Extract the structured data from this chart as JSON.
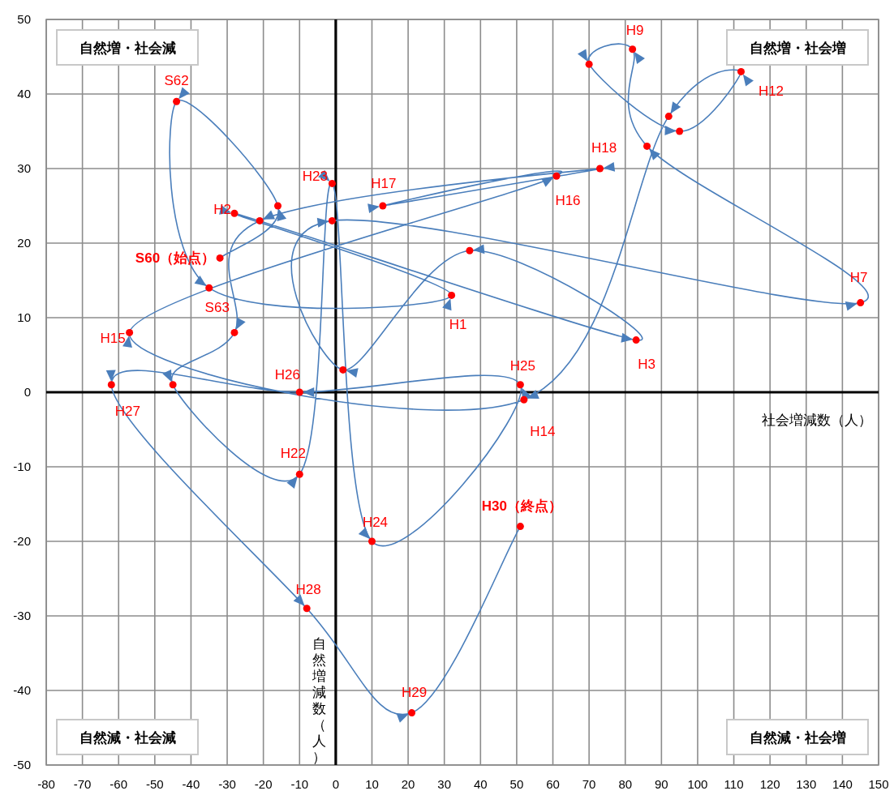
{
  "chart_data": {
    "type": "line",
    "xlabel": "社会増減数（人）",
    "ylabel": "自然増減数（人）",
    "x": [
      -32,
      -16,
      -44,
      -35,
      32,
      -28,
      83,
      37,
      2,
      -1,
      145,
      86,
      82,
      70,
      95,
      112,
      92,
      52,
      -57,
      61,
      13,
      73,
      -21,
      -28,
      -45,
      -10,
      -1,
      10,
      51,
      -10,
      -62,
      -8,
      21,
      51
    ],
    "series": [
      {
        "color": "#4a7ebb",
        "values": [
          18,
          25,
          39,
          14,
          13,
          24,
          7,
          19,
          3,
          23,
          12,
          33,
          46,
          44,
          35,
          43,
          37,
          -1,
          8,
          29,
          25,
          30,
          23,
          8,
          1,
          -11,
          28,
          -20,
          1,
          0,
          1,
          -29,
          -43,
          -18
        ]
      }
    ],
    "xlim": [
      -80,
      150
    ],
    "ylim": [
      -50,
      50
    ],
    "xticks": [
      -80,
      -70,
      -60,
      -50,
      -40,
      -30,
      -20,
      -10,
      0,
      10,
      20,
      30,
      40,
      50,
      60,
      70,
      80,
      90,
      100,
      110,
      120,
      130,
      140,
      150
    ],
    "yticks": [
      -50,
      -40,
      -30,
      -20,
      -10,
      0,
      10,
      20,
      30,
      40,
      50
    ],
    "grid": true,
    "marker": "circle",
    "annotations": [
      "自然増・社会減",
      "自然増・社会増",
      "自然減・社会減",
      "自然減・社会増",
      {
        "text": "S60（始点）",
        "x": -32,
        "y": 18
      },
      {
        "text": "S62",
        "x": -44,
        "y": 39
      },
      {
        "text": "S63",
        "x": -35,
        "y": 14
      },
      {
        "text": "H1",
        "x": 32,
        "y": 13
      },
      {
        "text": "H2",
        "x": -28,
        "y": 24
      },
      {
        "text": "H3",
        "x": 83,
        "y": 7
      },
      {
        "text": "H7",
        "x": 145,
        "y": 12
      },
      {
        "text": "H9",
        "x": 82,
        "y": 46
      },
      {
        "text": "H12",
        "x": 112,
        "y": 43
      },
      {
        "text": "H14",
        "x": 52,
        "y": -1
      },
      {
        "text": "H15",
        "x": -57,
        "y": 8
      },
      {
        "text": "H16",
        "x": 61,
        "y": 29
      },
      {
        "text": "H17",
        "x": 13,
        "y": 25
      },
      {
        "text": "H18",
        "x": 73,
        "y": 30
      },
      {
        "text": "H22",
        "x": -10,
        "y": -11
      },
      {
        "text": "H23",
        "x": -1,
        "y": 28
      },
      {
        "text": "H24",
        "x": 10,
        "y": -20
      },
      {
        "text": "H25",
        "x": 51,
        "y": 1
      },
      {
        "text": "H26",
        "x": -10,
        "y": 0
      },
      {
        "text": "H27",
        "x": -62,
        "y": 1
      },
      {
        "text": "H28",
        "x": -8,
        "y": -29
      },
      {
        "text": "H29",
        "x": 21,
        "y": -43
      },
      {
        "text": "H30（終点）",
        "x": 51,
        "y": -18
      }
    ]
  }
}
